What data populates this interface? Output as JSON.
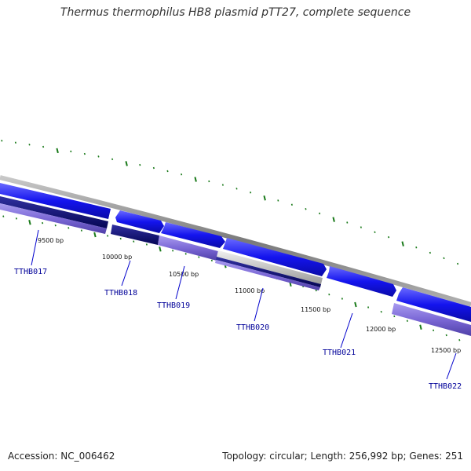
{
  "title": "Thermus thermophilus HB8 plasmid pTT27, complete sequence",
  "footer": {
    "accession": "Accession: NC_006462",
    "summary": "Topology: circular; Length: 256,992 bp; Genes: 251"
  },
  "colors": {
    "forward_gene": "#1414ee",
    "reverse_gene": "#7b68d6",
    "dark_gene": "#10107a",
    "backbone": "#8a8a8a",
    "tick": "#1a7a1a",
    "label": "#000099"
  },
  "bp_labels": [
    "9500 bp",
    "10000 bp",
    "10500 bp",
    "11000 bp",
    "11500 bp",
    "12000 bp",
    "12500 bp"
  ],
  "locus_labels": [
    "TTHB017",
    "TTHB018",
    "TTHB019",
    "TTHB020",
    "TTHB021",
    "TTHB022"
  ]
}
